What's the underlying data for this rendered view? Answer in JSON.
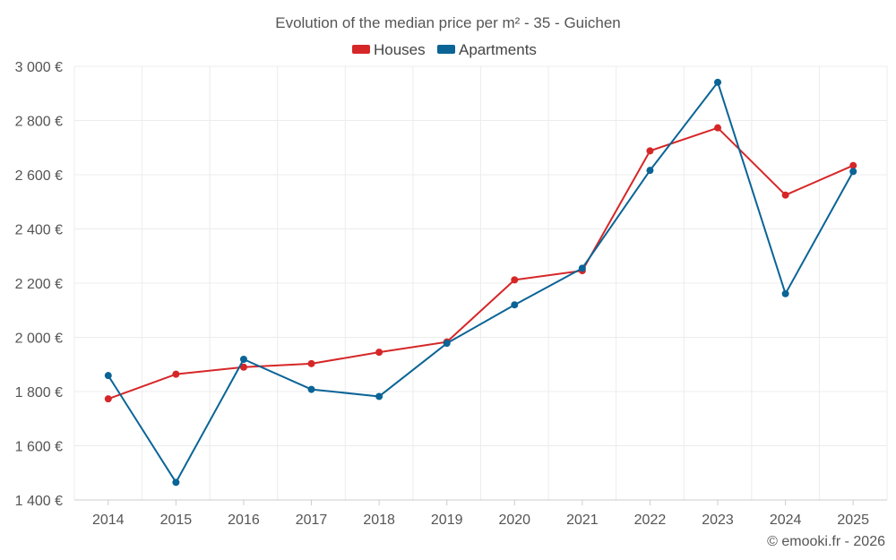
{
  "chart_data": {
    "type": "line",
    "title": "Evolution of the median price per m² - 35 - Guichen",
    "categories": [
      "2014",
      "2015",
      "2016",
      "2017",
      "2018",
      "2019",
      "2020",
      "2021",
      "2022",
      "2023",
      "2024",
      "2025"
    ],
    "series": [
      {
        "name": "Houses",
        "color": "#d62728",
        "values": [
          1773,
          1864,
          1890,
          1903,
          1945,
          1983,
          2212,
          2246,
          2688,
          2773,
          2525,
          2634
        ]
      },
      {
        "name": "Apartments",
        "color": "#0a6496",
        "values": [
          1859,
          1465,
          1919,
          1808,
          1782,
          1978,
          2120,
          2255,
          2616,
          2941,
          2161,
          2612
        ]
      }
    ],
    "ylim": [
      1400,
      3000
    ],
    "yticks": [
      1400,
      1600,
      1800,
      2000,
      2200,
      2400,
      2600,
      2800,
      3000
    ],
    "ytick_labels": [
      "1 400 €",
      "1 600 €",
      "1 800 €",
      "2 000 €",
      "2 200 €",
      "2 400 €",
      "2 600 €",
      "2 800 €",
      "3 000 €"
    ],
    "xlabel": "",
    "ylabel": "",
    "grid": true,
    "legend_position": "top-center"
  },
  "credit": "© emooki.fr - 2026"
}
